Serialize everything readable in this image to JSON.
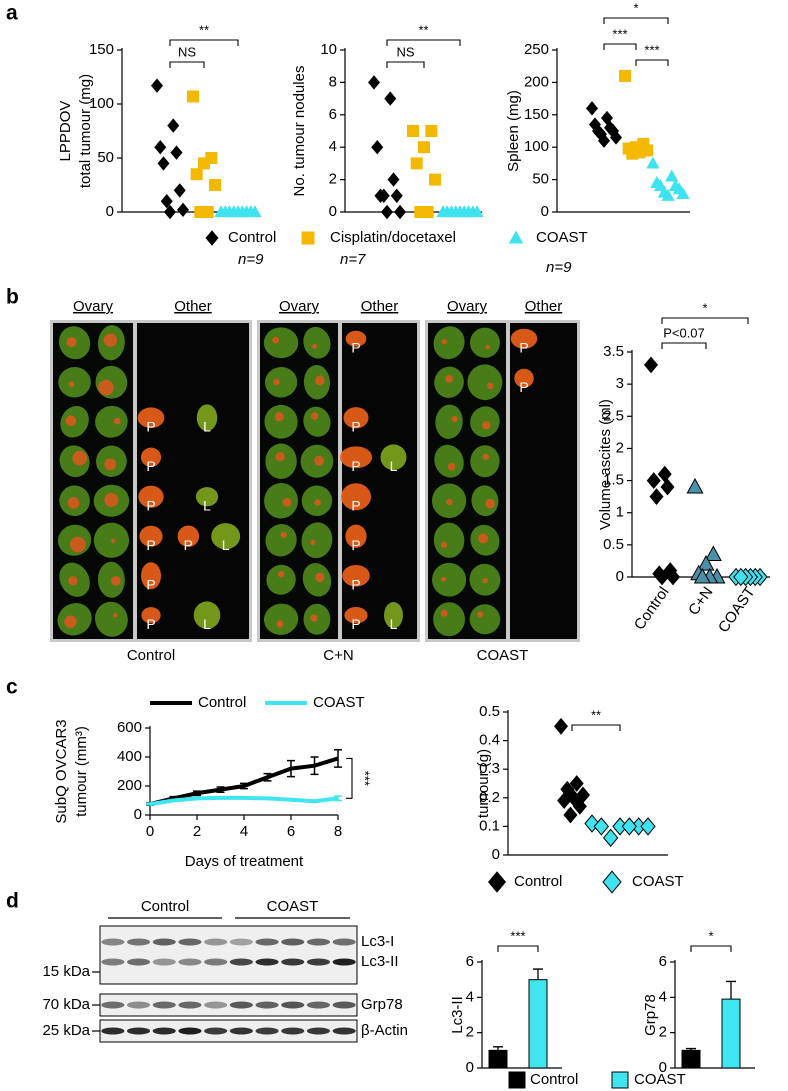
{
  "panel_labels": [
    "a",
    "b",
    "c",
    "d"
  ],
  "chart_data": [
    {
      "type": "strip",
      "ylabel": [
        "LPPDOV",
        "total tumour (mg)"
      ],
      "ylim": [
        0,
        150
      ],
      "yticks": [
        0,
        50,
        100,
        150
      ],
      "series": [
        {
          "name": "Control",
          "n_label": "n=9",
          "color": "#000000",
          "marker": "diamond",
          "values": [
            117,
            80,
            60,
            55,
            45,
            20,
            10,
            2,
            0
          ]
        },
        {
          "name": "Cisplatin/docetaxel",
          "n_label": "n=7",
          "color": "#f5b800",
          "marker": "square",
          "values": [
            107,
            50,
            45,
            35,
            25,
            0,
            0
          ]
        },
        {
          "name": "COAST",
          "n_label": "n=9",
          "color": "#3fe3f0",
          "marker": "triangle",
          "values": [
            0,
            0,
            0,
            0,
            0,
            0,
            0,
            0,
            0
          ]
        }
      ],
      "annotations": [
        "NS",
        "**"
      ]
    },
    {
      "type": "strip",
      "ylabel": [
        "No. tumour nodules"
      ],
      "ylim": [
        0,
        10
      ],
      "yticks": [
        0,
        2,
        4,
        6,
        8,
        10
      ],
      "series": [
        {
          "color": "#000000",
          "marker": "diamond",
          "values": [
            8,
            7,
            4,
            2,
            1,
            1,
            1,
            0,
            0
          ]
        },
        {
          "color": "#f5b800",
          "marker": "square",
          "values": [
            5,
            5,
            4,
            3,
            2,
            0,
            0
          ]
        },
        {
          "color": "#3fe3f0",
          "marker": "triangle",
          "values": [
            0,
            0,
            0,
            0,
            0,
            0,
            0,
            0,
            0
          ]
        }
      ],
      "annotations": [
        "NS",
        "**"
      ]
    },
    {
      "type": "strip",
      "ylabel": [
        "Spleen (mg)"
      ],
      "ylim": [
        0,
        250
      ],
      "yticks": [
        0,
        50,
        100,
        150,
        200,
        250
      ],
      "series": [
        {
          "color": "#000000",
          "marker": "diamond",
          "values": [
            160,
            145,
            135,
            130,
            125,
            125,
            120,
            115,
            110
          ]
        },
        {
          "color": "#f5b800",
          "marker": "square",
          "values": [
            210,
            105,
            100,
            98,
            95,
            92,
            90
          ]
        },
        {
          "color": "#3fe3f0",
          "marker": "triangle",
          "values": [
            75,
            55,
            45,
            40,
            40,
            35,
            30,
            28,
            25
          ]
        }
      ],
      "annotations": [
        "***",
        "*",
        "***"
      ]
    },
    {
      "type": "strip",
      "ylabel": [
        "Volume ascites (ml)"
      ],
      "ylim": [
        0,
        3.5
      ],
      "yticks": [
        0,
        0.5,
        1,
        1.5,
        2,
        2.5,
        3,
        3.5
      ],
      "categories": [
        "Control",
        "C+N",
        "COAST"
      ],
      "series": [
        {
          "color": "#000000",
          "marker": "diamond",
          "values": [
            3.3,
            1.6,
            1.5,
            1.4,
            1.25,
            0.1,
            0.05,
            0,
            0
          ]
        },
        {
          "color": "#4a90a8",
          "edgecolor": "#000000",
          "marker": "triangle",
          "values": [
            1.4,
            0.35,
            0.2,
            0.05,
            0,
            0,
            0
          ]
        },
        {
          "color": "#3fe3f0",
          "edgecolor": "#000000",
          "marker": "diamond",
          "values": [
            0,
            0,
            0,
            0,
            0,
            0
          ]
        }
      ],
      "annotations": [
        "P<0.07",
        "*"
      ]
    },
    {
      "type": "line",
      "ylabel": [
        "SubQ OVCAR3",
        "tumour (mm³)"
      ],
      "xlabel": "Days of treatment",
      "x": [
        0,
        1,
        2,
        3,
        4,
        5,
        6,
        7,
        8
      ],
      "xlim": [
        0,
        8
      ],
      "xticks": [
        0,
        2,
        4,
        6,
        8
      ],
      "ylim": [
        0,
        600
      ],
      "yticks": [
        0,
        200,
        400,
        600
      ],
      "series": [
        {
          "name": "Control",
          "color": "#000000",
          "values": [
            75,
            115,
            150,
            175,
            200,
            260,
            320,
            340,
            390
          ],
          "errors": [
            8,
            12,
            15,
            18,
            18,
            25,
            55,
            60,
            60
          ]
        },
        {
          "name": "COAST",
          "color": "#3fe6f0",
          "values": [
            75,
            100,
            115,
            118,
            118,
            115,
            105,
            95,
            115
          ],
          "errors": [
            5,
            5,
            6,
            6,
            6,
            6,
            6,
            6,
            15
          ]
        }
      ],
      "annotations": [
        "***"
      ]
    },
    {
      "type": "strip",
      "ylabel": [
        "tumour (g)"
      ],
      "ylim": [
        0,
        0.5
      ],
      "yticks": [
        0,
        0.1,
        0.2,
        0.3,
        0.4,
        0.5
      ],
      "series": [
        {
          "name": "Control",
          "color": "#000000",
          "marker": "diamond",
          "values": [
            0.45,
            0.25,
            0.23,
            0.21,
            0.2,
            0.19,
            0.17,
            0.14
          ]
        },
        {
          "name": "COAST",
          "color": "#3fe3f0",
          "edgecolor": "#000000",
          "marker": "diamond",
          "values": [
            0.11,
            0.1,
            0.1,
            0.1,
            0.1,
            0.1,
            0.06
          ]
        }
      ],
      "annotations": [
        "**"
      ]
    },
    {
      "type": "bar",
      "ylabel": [
        "Lc3-II"
      ],
      "ylim": [
        0,
        6
      ],
      "yticks": [
        0,
        2,
        4,
        6
      ],
      "series": [
        {
          "name": "Control",
          "color": "#000000",
          "values": [
            1
          ],
          "errors": [
            0.2
          ]
        },
        {
          "name": "COAST",
          "color": "#3fe6f0",
          "values": [
            5
          ],
          "errors": [
            0.6
          ]
        }
      ],
      "annotations": [
        "***"
      ]
    },
    {
      "type": "bar",
      "ylabel": [
        "Grp78"
      ],
      "ylim": [
        0,
        6
      ],
      "yticks": [
        0,
        2,
        4,
        6
      ],
      "series": [
        {
          "color": "#000000",
          "values": [
            1
          ],
          "errors": [
            0.1
          ]
        },
        {
          "color": "#3fe6f0",
          "values": [
            3.9
          ],
          "errors": [
            1.0
          ]
        }
      ],
      "annotations": [
        "*"
      ]
    }
  ],
  "panel_b": {
    "groups": [
      {
        "title": "Control",
        "columns": [
          "Ovary",
          "Other"
        ],
        "other_labels": [
          [],
          [],
          [
            "P",
            "L"
          ],
          [
            "P"
          ],
          [
            "P",
            "L"
          ],
          [
            "P",
            "P",
            "L"
          ],
          [
            "P"
          ],
          [
            "P",
            "L"
          ]
        ]
      },
      {
        "title": "C+N",
        "columns": [
          "Ovary",
          "Other"
        ],
        "other_labels": [
          [
            "P"
          ],
          [],
          [
            "P"
          ],
          [
            "P",
            "L"
          ],
          [
            "P"
          ],
          [
            "P"
          ],
          [
            "P"
          ],
          [
            "P",
            "L"
          ]
        ]
      },
      {
        "title": "COAST",
        "columns": [
          "Ovary",
          "Other"
        ],
        "other_labels": [
          [
            "P"
          ],
          [
            "P"
          ],
          [],
          [],
          [],
          [],
          [],
          []
        ]
      }
    ]
  },
  "panel_d": {
    "groups": [
      "Control",
      "COAST"
    ],
    "blots": [
      {
        "markers": [
          "15 kDa"
        ],
        "bands": [
          "Lc3-I",
          "Lc3-II"
        ]
      },
      {
        "markers": [
          "70 kDa"
        ],
        "bands": [
          "Grp78"
        ]
      },
      {
        "markers": [
          "25 kDa"
        ],
        "bands": [
          "β-Actin"
        ]
      }
    ]
  }
}
